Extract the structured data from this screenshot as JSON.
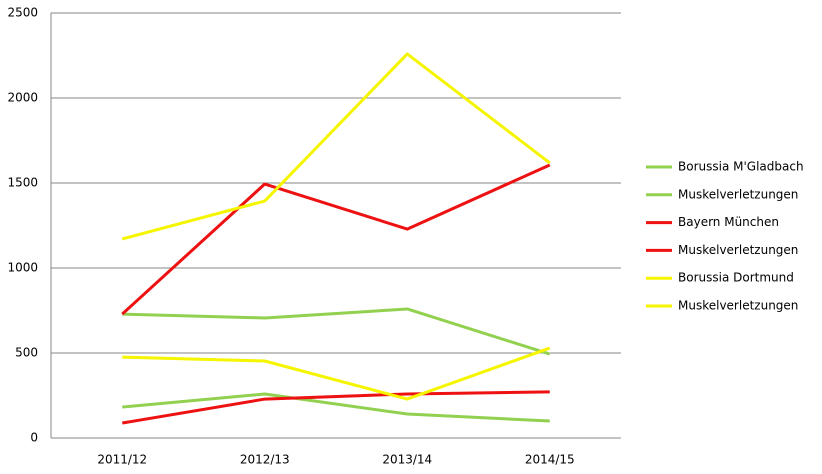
{
  "chart_data": {
    "type": "line",
    "categories": [
      "2011/12",
      "2012/13",
      "2013/14",
      "2014/15"
    ],
    "series": [
      {
        "name": "Borussia M'Gladbach",
        "color": "#92d050",
        "values": [
          729,
          706,
          759,
          494
        ]
      },
      {
        "name": "Muskelverletzungen",
        "color": "#92d050",
        "values": [
          182,
          259,
          141,
          100
        ]
      },
      {
        "name": "Bayern München",
        "color": "#ee1111",
        "values": [
          729,
          1494,
          1229,
          1606
        ]
      },
      {
        "name": "Muskelverletzungen",
        "color": "#ee1111",
        "values": [
          88,
          229,
          259,
          271
        ]
      },
      {
        "name": "Borussia Dortmund",
        "color": "#f5f500",
        "values": [
          1171,
          1394,
          2259,
          1618
        ]
      },
      {
        "name": "Muskelverletzungen",
        "color": "#f5f500",
        "values": [
          476,
          453,
          229,
          529
        ]
      }
    ],
    "ylim": [
      0,
      2500
    ],
    "yticks": [
      0,
      500,
      1000,
      1500,
      2000,
      2500
    ],
    "grid": true,
    "legend": "right"
  }
}
